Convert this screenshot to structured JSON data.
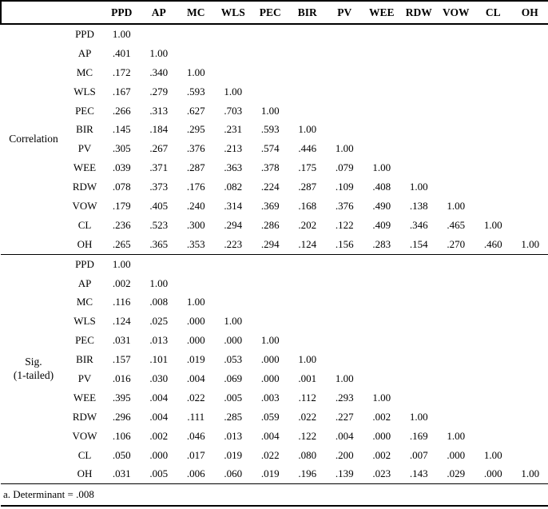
{
  "page": {
    "background_color": "#ffffff",
    "text_color": "#000000"
  },
  "table": {
    "columns": [
      "PPD",
      "AP",
      "MC",
      "WLS",
      "PEC",
      "BIR",
      "PV",
      "WEE",
      "RDW",
      "VOW",
      "CL",
      "OH"
    ],
    "sections": [
      {
        "label": "Correlation",
        "label_lines": [
          "Correlation"
        ],
        "rows": [
          {
            "label": "PPD",
            "values": [
              "1.00"
            ]
          },
          {
            "label": "AP",
            "values": [
              ".401",
              "1.00"
            ]
          },
          {
            "label": "MC",
            "values": [
              ".172",
              ".340",
              "1.00"
            ]
          },
          {
            "label": "WLS",
            "values": [
              ".167",
              ".279",
              ".593",
              "1.00"
            ]
          },
          {
            "label": "PEC",
            "values": [
              ".266",
              ".313",
              ".627",
              ".703",
              "1.00"
            ]
          },
          {
            "label": "BIR",
            "values": [
              ".145",
              ".184",
              ".295",
              ".231",
              ".593",
              "1.00"
            ]
          },
          {
            "label": "PV",
            "values": [
              ".305",
              ".267",
              ".376",
              ".213",
              ".574",
              ".446",
              "1.00"
            ]
          },
          {
            "label": "WEE",
            "values": [
              ".039",
              ".371",
              ".287",
              ".363",
              ".378",
              ".175",
              ".079",
              "1.00"
            ]
          },
          {
            "label": "RDW",
            "values": [
              ".078",
              ".373",
              ".176",
              ".082",
              ".224",
              ".287",
              ".109",
              ".408",
              "1.00"
            ]
          },
          {
            "label": "VOW",
            "values": [
              ".179",
              ".405",
              ".240",
              ".314",
              ".369",
              ".168",
              ".376",
              ".490",
              ".138",
              "1.00"
            ]
          },
          {
            "label": "CL",
            "values": [
              ".236",
              ".523",
              ".300",
              ".294",
              ".286",
              ".202",
              ".122",
              ".409",
              ".346",
              ".465",
              "1.00"
            ]
          },
          {
            "label": "OH",
            "values": [
              ".265",
              ".365",
              ".353",
              ".223",
              ".294",
              ".124",
              ".156",
              ".283",
              ".154",
              ".270",
              ".460",
              "1.00"
            ]
          }
        ]
      },
      {
        "label": "Sig. (1-tailed)",
        "label_lines": [
          "Sig.",
          "(1-tailed)"
        ],
        "rows": [
          {
            "label": "PPD",
            "values": [
              "1.00"
            ]
          },
          {
            "label": "AP",
            "values": [
              ".002",
              "1.00"
            ]
          },
          {
            "label": "MC",
            "values": [
              ".116",
              ".008",
              "1.00"
            ]
          },
          {
            "label": "WLS",
            "values": [
              ".124",
              ".025",
              ".000",
              "1.00"
            ]
          },
          {
            "label": "PEC",
            "values": [
              ".031",
              ".013",
              ".000",
              ".000",
              "1.00"
            ]
          },
          {
            "label": "BIR",
            "values": [
              ".157",
              ".101",
              ".019",
              ".053",
              ".000",
              "1.00"
            ]
          },
          {
            "label": "PV",
            "values": [
              ".016",
              ".030",
              ".004",
              ".069",
              ".000",
              ".001",
              "1.00"
            ]
          },
          {
            "label": "WEE",
            "values": [
              ".395",
              ".004",
              ".022",
              ".005",
              ".003",
              ".112",
              ".293",
              "1.00"
            ]
          },
          {
            "label": "RDW",
            "values": [
              ".296",
              ".004",
              ".111",
              ".285",
              ".059",
              ".022",
              ".227",
              ".002",
              "1.00"
            ]
          },
          {
            "label": "VOW",
            "values": [
              ".106",
              ".002",
              ".046",
              ".013",
              ".004",
              ".122",
              ".004",
              ".000",
              ".169",
              "1.00"
            ]
          },
          {
            "label": "CL",
            "values": [
              ".050",
              ".000",
              ".017",
              ".019",
              ".022",
              ".080",
              ".200",
              ".002",
              ".007",
              ".000",
              "1.00"
            ]
          },
          {
            "label": "OH",
            "values": [
              ".031",
              ".005",
              ".006",
              ".060",
              ".019",
              ".196",
              ".139",
              ".023",
              ".143",
              ".029",
              ".000",
              "1.00"
            ]
          }
        ]
      }
    ],
    "footnote": "a. Determinant = .008"
  }
}
